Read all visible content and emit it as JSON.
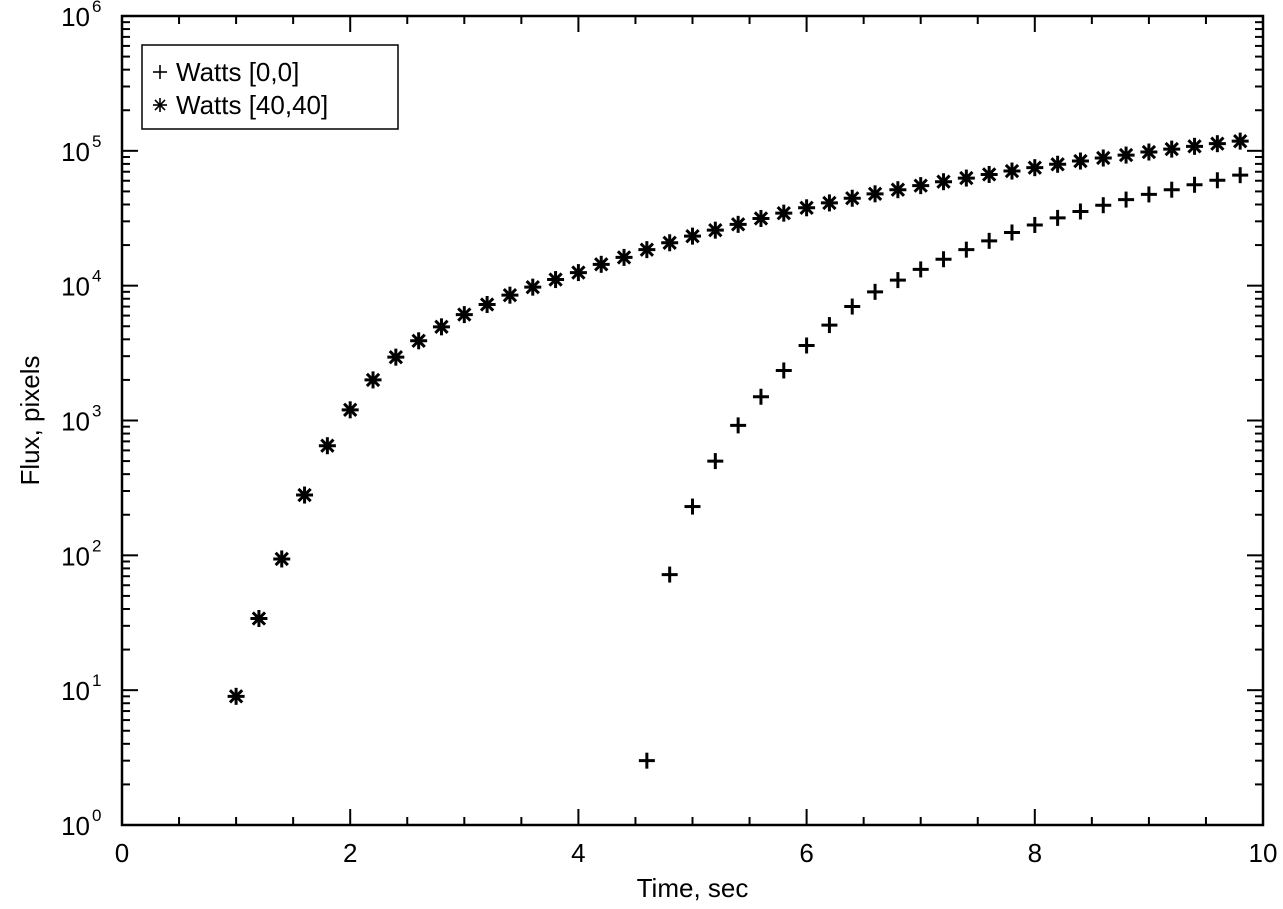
{
  "chart_data": {
    "type": "scatter",
    "xlabel": "Time, sec",
    "ylabel": "Flux, pixels",
    "xlim": [
      0,
      10
    ],
    "ylim": [
      1,
      1000000
    ],
    "yscale": "log",
    "grid": false,
    "legend_position": "top-left",
    "x_ticks": [
      "0",
      "2",
      "4",
      "6",
      "8",
      "10"
    ],
    "y_ticks": [
      {
        "base": "10",
        "exp": "0"
      },
      {
        "base": "10",
        "exp": "1"
      },
      {
        "base": "10",
        "exp": "2"
      },
      {
        "base": "10",
        "exp": "3"
      },
      {
        "base": "10",
        "exp": "4"
      },
      {
        "base": "10",
        "exp": "5"
      },
      {
        "base": "10",
        "exp": "6"
      }
    ],
    "series": [
      {
        "name": "Watts [0,0]",
        "marker": "plus",
        "color": "#000000",
        "x": [
          4.6,
          4.8,
          5.0,
          5.2,
          5.4,
          5.6,
          5.8,
          6.0,
          6.2,
          6.4,
          6.6,
          6.8,
          7.0,
          7.2,
          7.4,
          7.6,
          7.8,
          8.0,
          8.2,
          8.4,
          8.6,
          8.8,
          9.0,
          9.2,
          9.4,
          9.6,
          9.8
        ],
        "y": [
          3,
          72,
          230,
          500,
          920,
          1500,
          2350,
          3600,
          5100,
          7000,
          9000,
          11000,
          13200,
          15700,
          18500,
          21500,
          24800,
          28200,
          31800,
          35500,
          39500,
          43500,
          47500,
          51500,
          56000,
          60500,
          66000
        ]
      },
      {
        "name": "Watts [40,40]",
        "marker": "asterisk",
        "color": "#000000",
        "x": [
          1.0,
          1.2,
          1.4,
          1.6,
          1.8,
          2.0,
          2.2,
          2.4,
          2.6,
          2.8,
          3.0,
          3.2,
          3.4,
          3.6,
          3.8,
          4.0,
          4.2,
          4.4,
          4.6,
          4.8,
          5.0,
          5.2,
          5.4,
          5.6,
          5.8,
          6.0,
          6.2,
          6.4,
          6.6,
          6.8,
          7.0,
          7.2,
          7.4,
          7.6,
          7.8,
          8.0,
          8.2,
          8.4,
          8.6,
          8.8,
          9.0,
          9.2,
          9.4,
          9.6,
          9.8
        ],
        "y": [
          9,
          34,
          94,
          280,
          650,
          1200,
          2000,
          2950,
          3900,
          4950,
          6100,
          7250,
          8500,
          9750,
          11100,
          12500,
          14400,
          16200,
          18500,
          20800,
          23300,
          25800,
          28500,
          31500,
          34500,
          37800,
          41100,
          44500,
          48000,
          51500,
          55200,
          59000,
          62800,
          66800,
          70800,
          75000,
          79500,
          84000,
          88500,
          93000,
          98000,
          103000,
          108000,
          113000,
          118000
        ]
      }
    ]
  }
}
